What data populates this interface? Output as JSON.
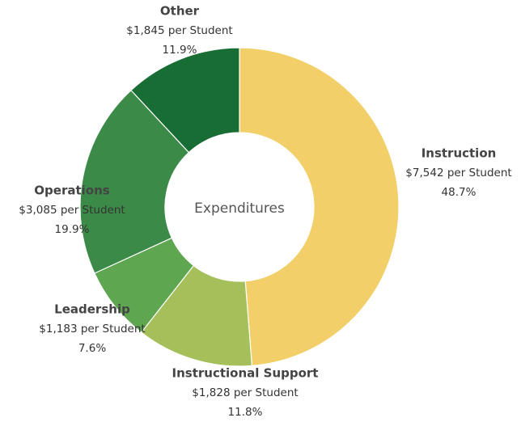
{
  "chart_data": {
    "type": "donut",
    "center_label": "Expenditures",
    "categories": [
      "Instruction",
      "Instructional Support",
      "Leadership",
      "Operations",
      "Other"
    ],
    "values": [
      48.7,
      11.8,
      7.6,
      19.9,
      11.9
    ],
    "value_labels": [
      "48.7%",
      "11.8%",
      "7.6%",
      "19.9%",
      "11.9%"
    ],
    "amount_labels": [
      "$7,542 per Student",
      "$1,828 per Student",
      "$1,183 per Student",
      "$3,085 per Student",
      "$1,845 per Student"
    ],
    "colors": [
      "#f2cf68",
      "#a5c05a",
      "#5fa650",
      "#3b8a47",
      "#176d34"
    ]
  }
}
